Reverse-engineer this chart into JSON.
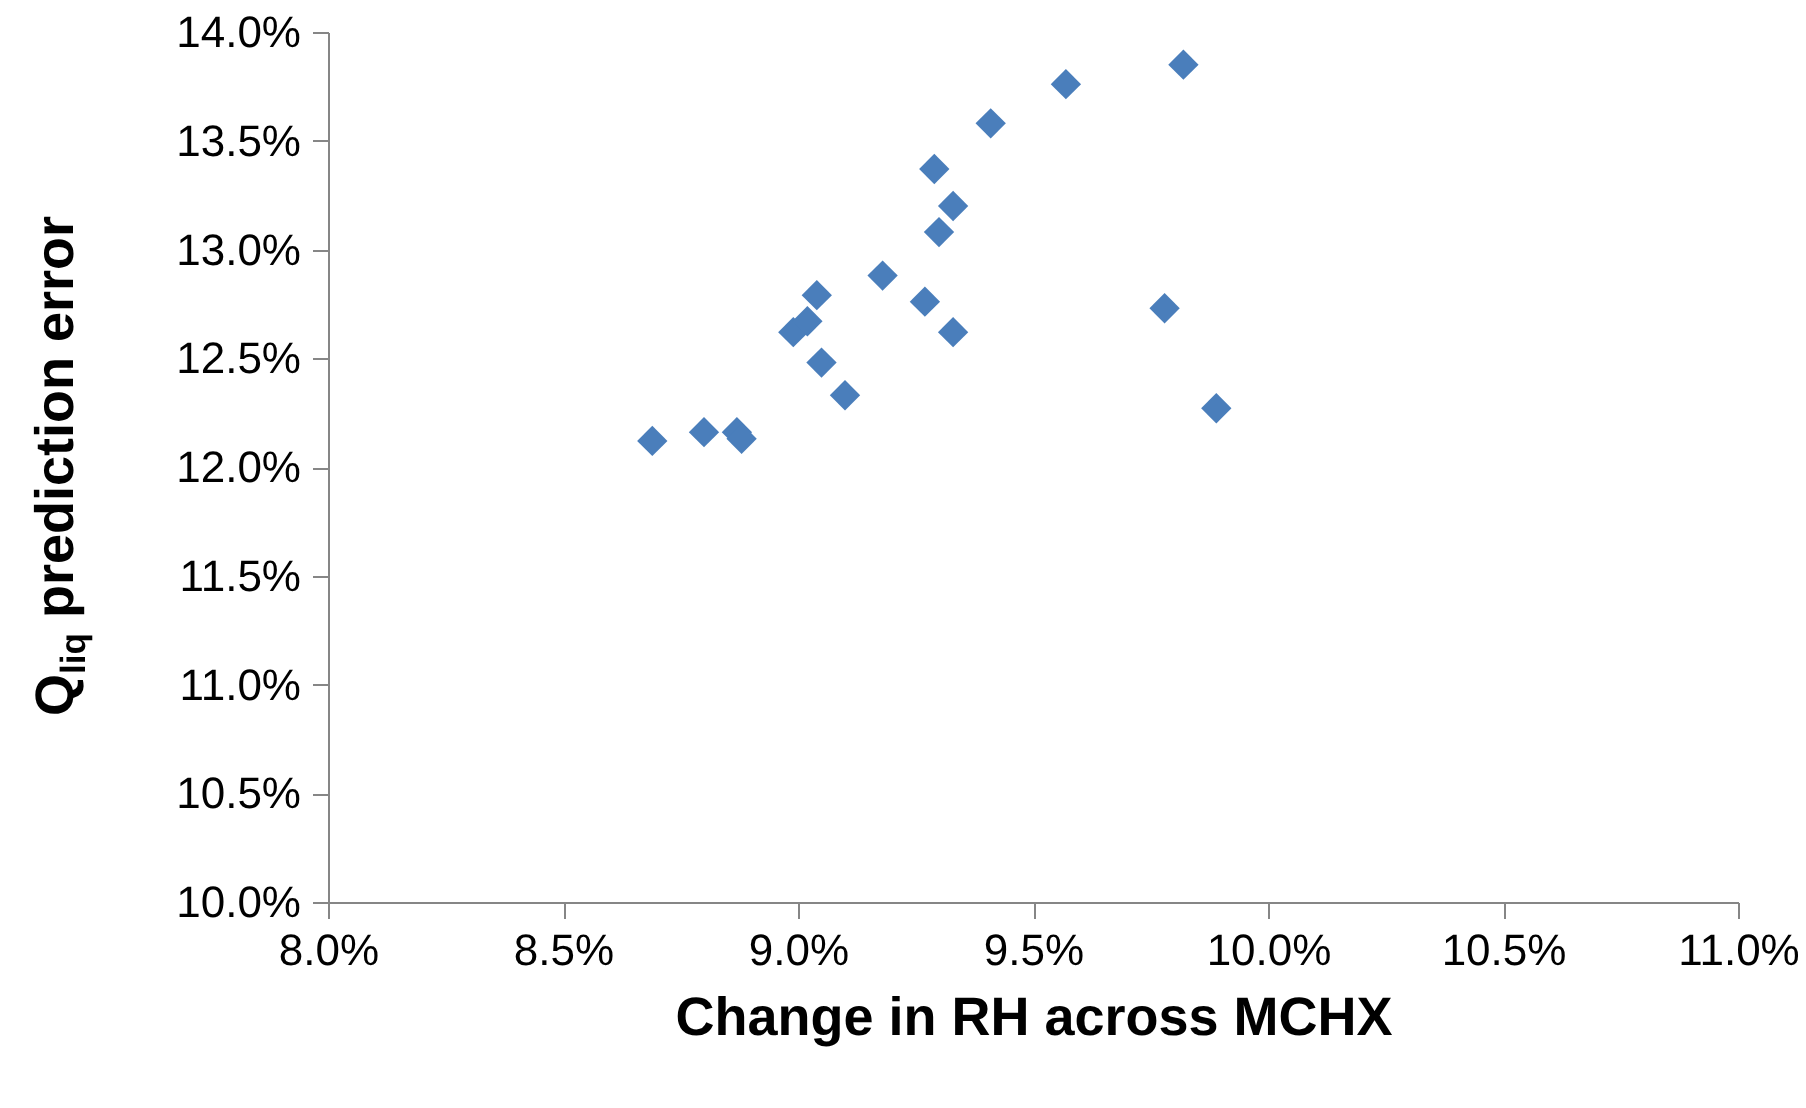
{
  "chart_data": {
    "type": "scatter",
    "xlabel": "Change in RH across MCHX",
    "ylabel": "Q$_{liq}$ prediction error",
    "x": [
      8.69,
      8.8,
      8.87,
      8.88,
      8.99,
      9.02,
      9.04,
      9.05,
      9.1,
      9.18,
      9.27,
      9.33,
      9.3,
      9.33,
      9.29,
      9.41,
      9.57,
      9.78,
      9.89,
      9.82
    ],
    "series": [
      {
        "color": "#4a7ebb",
        "values": [
          12.12,
          12.16,
          12.16,
          12.13,
          12.62,
          12.67,
          12.79,
          12.48,
          12.33,
          12.88,
          12.76,
          12.62,
          13.08,
          13.2,
          13.37,
          13.58,
          13.76,
          12.73,
          12.27,
          13.85
        ]
      }
    ],
    "xlim": [
      8.0,
      11.0
    ],
    "xticks": [
      {
        "value": 8.0,
        "label": "8.0%"
      },
      {
        "value": 8.5,
        "label": "8.5%"
      },
      {
        "value": 9.0,
        "label": "9.0%"
      },
      {
        "value": 9.5,
        "label": "9.5%"
      },
      {
        "value": 10.0,
        "label": "10.0%"
      },
      {
        "value": 10.5,
        "label": "10.5%"
      },
      {
        "value": 11.0,
        "label": "11.0%"
      }
    ],
    "ylim": [
      10.0,
      14.0
    ],
    "yticks": [
      {
        "value": 10.0,
        "label": "10.0%"
      },
      {
        "value": 10.5,
        "label": "10.5%"
      },
      {
        "value": 11.0,
        "label": "11.0%"
      },
      {
        "value": 11.5,
        "label": "11.5%"
      },
      {
        "value": 12.0,
        "label": "12.0%"
      },
      {
        "value": 12.5,
        "label": "12.5%"
      },
      {
        "value": 13.0,
        "label": "13.0%"
      },
      {
        "value": 13.5,
        "label": "13.5%"
      },
      {
        "value": 14.0,
        "label": "14.0%"
      }
    ],
    "marker": "diamond"
  }
}
